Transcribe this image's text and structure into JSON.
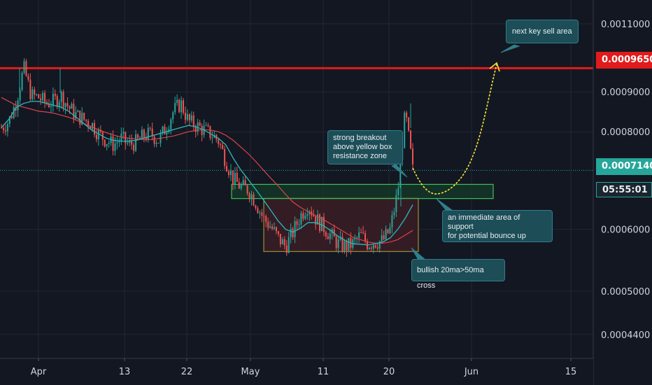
{
  "chart_data": {
    "type": "candlestick",
    "x_labels": [
      "Apr",
      "13",
      "22",
      "May",
      "11",
      "20",
      "Jun",
      "15"
    ],
    "y_ticks": [
      "0.0011000",
      "0.0009000",
      "0.0008000",
      "0.0006000",
      "0.0005000",
      "0.0004400"
    ],
    "ylim": [
      0.00041,
      0.00118
    ],
    "y_scale": "log",
    "resistance_level": 0.000965,
    "current_price": 0.000714,
    "countdown": "05:55:01",
    "green_box": {
      "low": 0.000657,
      "high": 0.000685
    },
    "yellow_box": {
      "low": 0.000562,
      "high": 0.000658
    },
    "annotations": [
      "next key sell area",
      "strong breakout\nabove yellow box\nresistance zone",
      "an immediate area of support\nfor potential bounce up",
      "bullish 20ma>50ma cross"
    ],
    "series": [
      {
        "values": [
          0.00081,
          0.000825,
          0.000875,
          0.000965,
          0.00089,
          0.000885,
          0.00087,
          0.000875,
          0.00089,
          0.00086,
          0.00084,
          0.00083,
          0.00082,
          0.000795,
          0.00078,
          0.00077,
          0.000785,
          0.00077,
          0.000775,
          0.00079,
          0.000795,
          0.00078,
          0.00081,
          0.00085,
          0.00087,
          0.000825,
          0.000815,
          0.000805,
          0.000795,
          0.00078,
          0.000735,
          0.000695,
          0.00068,
          0.000675,
          0.00065,
          0.00062,
          0.000605,
          0.000585,
          0.00057,
          0.000595,
          0.000625,
          0.000645,
          0.00062,
          0.000605,
          0.00059,
          0.000575,
          0.00057,
          0.000575,
          0.00059,
          0.000575,
          0.000578,
          0.00058,
          0.0006,
          0.00067,
          0.000845,
          0.000714
        ]
      }
    ],
    "ma20": [
      0.00081,
      0.00083,
      0.00086,
      0.00087,
      0.000875,
      0.000875,
      0.00087,
      0.000865,
      0.00086,
      0.00085,
      0.000835,
      0.00082,
      0.000805,
      0.000795,
      0.000785,
      0.00078,
      0.000778,
      0.000778,
      0.00078,
      0.000785,
      0.00079,
      0.000795,
      0.0008,
      0.000805,
      0.00081,
      0.000815,
      0.000812,
      0.000805,
      0.000795,
      0.000785,
      0.00077,
      0.00074,
      0.000715,
      0.000695,
      0.000675,
      0.000655,
      0.000635,
      0.000615,
      0.0006,
      0.000595,
      0.000602,
      0.000612,
      0.000612,
      0.000607,
      0.000598,
      0.000588,
      0.00058,
      0.000575,
      0.000574,
      0.000573,
      0.000575,
      0.000578,
      0.000585,
      0.0006,
      0.00062,
      0.000645
    ],
    "ma50": [
      0.000885,
      0.000875,
      0.000865,
      0.00086,
      0.000855,
      0.00085,
      0.000848,
      0.000845,
      0.00084,
      0.000835,
      0.000828,
      0.00082,
      0.000812,
      0.000805,
      0.000798,
      0.000792,
      0.000788,
      0.000785,
      0.000783,
      0.000782,
      0.000782,
      0.000784,
      0.000787,
      0.00079,
      0.000795,
      0.0008,
      0.000803,
      0.000805,
      0.000804,
      0.0008,
      0.000792,
      0.00078,
      0.000765,
      0.00075,
      0.000733,
      0.000715,
      0.000698,
      0.000682,
      0.000665,
      0.00065,
      0.00064,
      0.000632,
      0.000625,
      0.000618,
      0.00061,
      0.000602,
      0.000594,
      0.000586,
      0.000582,
      0.000578,
      0.000576,
      0.000576,
      0.000578,
      0.000582,
      0.00059,
      0.000598
    ]
  }
}
